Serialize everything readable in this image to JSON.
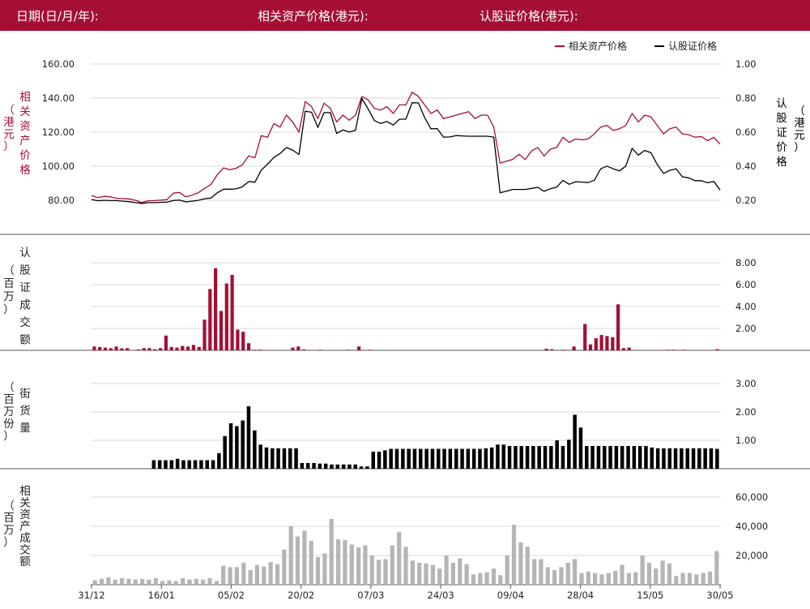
{
  "header": {
    "date_label": "日期(日/月/年):",
    "asset_label": "相关资产价格(港元):",
    "warrant_label": "认股证价格(港元):"
  },
  "colors": {
    "header_bg": "#a50f34",
    "asset": "#a50f34",
    "warrant": "#000000",
    "volume": "#b5b5b5",
    "grid": "#d9d9d9"
  },
  "chart_data": [
    {
      "type": "line",
      "legend": [
        "相关资产价格",
        "认股证价格"
      ],
      "legend_position": "top-right",
      "ylabel_left": "相关资产价格",
      "ylabel_left_unit": "（港元）",
      "ylabel_right": "认股证价格",
      "ylabel_right_unit": "（港元）",
      "y_left_ticks": [
        "80.00",
        "100.00",
        "120.00",
        "140.00",
        "160.00"
      ],
      "y_left_range": [
        70,
        164
      ],
      "y_right_ticks": [
        "0.20",
        "0.40",
        "0.60",
        "0.80",
        "1.00"
      ],
      "y_right_range": [
        0.1,
        1.04
      ],
      "series": [
        {
          "name": "相关资产价格",
          "axis": "left",
          "values": [
            82.7,
            81.5,
            82.3,
            82.0,
            81.2,
            81.0,
            80.8,
            80.0,
            78.7,
            79.7,
            79.8,
            80.1,
            80.4,
            84.2,
            84.6,
            82.0,
            83.0,
            84.5,
            87.0,
            89.3,
            95.0,
            99.0,
            98.0,
            98.8,
            100.8,
            106.0,
            105.0,
            118.0,
            117.0,
            125.0,
            123.0,
            130.0,
            126.0,
            120.0,
            138.0,
            135.0,
            128.0,
            137.0,
            134.0,
            126.0,
            130.0,
            127.0,
            130.0,
            141.0,
            139.0,
            134.0,
            133.0,
            135.0,
            131.0,
            136.0,
            136.0,
            143.5,
            141.0,
            136.0,
            131.0,
            133.0,
            128.0,
            129.0,
            130.0,
            131.0,
            132.0,
            128.0,
            130.0,
            130.0,
            123.0,
            101.8,
            103.0,
            104.0,
            107.0,
            104.0,
            109.0,
            111.0,
            106.0,
            110.0,
            111.0,
            117.0,
            114.0,
            116.0,
            115.5,
            116.0,
            119.0,
            123.0,
            124.0,
            121.0,
            122.0,
            124.0,
            131.0,
            126.0,
            130.0,
            129.0,
            124.0,
            119.0,
            122.0,
            123.0,
            119.0,
            118.5,
            117.0,
            117.5,
            115.0,
            117.0,
            113.0
          ]
        },
        {
          "name": "认股证价格",
          "axis": "right",
          "values": [
            0.205,
            0.197,
            0.2,
            0.198,
            0.198,
            0.195,
            0.192,
            0.186,
            0.182,
            0.186,
            0.186,
            0.188,
            0.189,
            0.199,
            0.201,
            0.191,
            0.195,
            0.2,
            0.209,
            0.213,
            0.244,
            0.265,
            0.265,
            0.267,
            0.279,
            0.31,
            0.306,
            0.377,
            0.412,
            0.451,
            0.475,
            0.51,
            0.495,
            0.469,
            0.723,
            0.717,
            0.628,
            0.715,
            0.715,
            0.593,
            0.613,
            0.601,
            0.611,
            0.798,
            0.737,
            0.668,
            0.651,
            0.663,
            0.642,
            0.676,
            0.676,
            0.773,
            0.772,
            0.685,
            0.62,
            0.621,
            0.571,
            0.572,
            0.58,
            0.578,
            0.576,
            0.576,
            0.576,
            0.576,
            0.571,
            0.244,
            0.254,
            0.264,
            0.264,
            0.264,
            0.27,
            0.276,
            0.253,
            0.268,
            0.277,
            0.317,
            0.294,
            0.309,
            0.307,
            0.304,
            0.318,
            0.385,
            0.401,
            0.385,
            0.373,
            0.401,
            0.505,
            0.465,
            0.493,
            0.48,
            0.41,
            0.358,
            0.376,
            0.385,
            0.338,
            0.332,
            0.315,
            0.315,
            0.303,
            0.311,
            0.261
          ]
        }
      ]
    },
    {
      "type": "bar",
      "ylabel": "认股证成交额",
      "ylabel_unit": "（百万）",
      "y_ticks": [
        "2.00",
        "4.00",
        "6.00",
        "8.00"
      ],
      "y_range": [
        0,
        9.0
      ],
      "series": [
        {
          "name": "认股证成交额",
          "values": [
            0.35,
            0.3,
            0.25,
            0.2,
            0.35,
            0.18,
            0.2,
            0,
            0.08,
            0.2,
            0.2,
            0.1,
            0.2,
            1.35,
            0.3,
            0.25,
            0.4,
            0.35,
            0.5,
            0.3,
            2.8,
            5.6,
            7.5,
            3.6,
            6.1,
            6.9,
            1.9,
            1.7,
            0.65,
            0.05,
            0.06,
            0,
            0,
            0,
            0,
            0,
            0.25,
            0.35,
            0.08,
            0,
            0,
            0.05,
            0,
            0,
            0,
            0,
            0.05,
            0,
            0.35,
            0,
            0.05,
            0,
            0,
            0,
            0,
            0,
            0,
            0,
            0,
            0,
            0,
            0,
            0,
            0,
            0,
            0,
            0,
            0,
            0,
            0,
            0,
            0,
            0,
            0,
            0,
            0,
            0,
            0,
            0,
            0,
            0,
            0,
            0.15,
            0.1,
            0,
            0.05,
            0,
            0.35,
            0,
            2.4,
            0.55,
            1.1,
            1.4,
            1.3,
            1.2,
            4.2,
            0.2,
            0.25,
            0,
            0,
            0,
            0,
            0,
            0,
            0.05,
            0.05,
            0,
            0.05,
            0,
            0,
            0,
            0,
            0,
            0.1
          ]
        }
      ]
    },
    {
      "type": "bar",
      "ylabel": "街货量",
      "ylabel_unit": "（百万份）",
      "y_ticks": [
        "1.00",
        "2.00",
        "3.00"
      ],
      "y_range": [
        0,
        3.2
      ],
      "series": [
        {
          "name": "街货量",
          "values": [
            0,
            0,
            0,
            0,
            0,
            0,
            0,
            0,
            0,
            0,
            0.3,
            0.3,
            0.3,
            0.3,
            0.35,
            0.3,
            0.3,
            0.3,
            0.3,
            0.3,
            0.3,
            0.55,
            1.15,
            1.6,
            1.5,
            1.7,
            2.2,
            1.35,
            0.85,
            0.75,
            0.72,
            0.72,
            0.72,
            0.72,
            0.72,
            0.2,
            0.2,
            0.2,
            0.18,
            0.18,
            0.15,
            0.15,
            0.15,
            0.15,
            0.15,
            0.08,
            0.08,
            0.6,
            0.6,
            0.65,
            0.7,
            0.7,
            0.7,
            0.7,
            0.7,
            0.7,
            0.7,
            0.7,
            0.7,
            0.7,
            0.7,
            0.7,
            0.7,
            0.7,
            0.7,
            0.7,
            0.72,
            0.75,
            0.85,
            0.85,
            0.8,
            0.8,
            0.8,
            0.8,
            0.8,
            0.8,
            0.8,
            0.8,
            1.0,
            0.8,
            1.02,
            1.9,
            1.45,
            0.8,
            0.8,
            0.8,
            0.8,
            0.8,
            0.8,
            0.8,
            0.8,
            0.8,
            0.8,
            0.8,
            0.75,
            0.72,
            0.72,
            0.72,
            0.72,
            0.72,
            0.72,
            0.72,
            0.72,
            0.72,
            0.72,
            0.7
          ]
        }
      ]
    },
    {
      "type": "bar",
      "ylabel": "相关资产成交额",
      "ylabel_unit": "（百万）",
      "y_ticks": [
        "20,000",
        "40,000",
        "60,000"
      ],
      "y_range": [
        0,
        64000
      ],
      "x_ticks": [
        "31/12",
        "16/01",
        "05/02",
        "20/02",
        "07/03",
        "24/03",
        "09/04",
        "28/04",
        "15/05",
        "30/05"
      ],
      "series": [
        {
          "name": "相关资产成交额",
          "values": [
            3000,
            4000,
            5000,
            3500,
            4500,
            4000,
            3500,
            4000,
            3500,
            4500,
            2500,
            3000,
            2500,
            4500,
            3500,
            4000,
            3500,
            4500,
            2500,
            13000,
            12000,
            12000,
            15000,
            10000,
            13500,
            12500,
            15500,
            14000,
            24000,
            40000,
            33000,
            37000,
            30000,
            19000,
            21500,
            45000,
            31000,
            30500,
            27500,
            25500,
            27000,
            20000,
            17000,
            17500,
            27000,
            36000,
            26000,
            16500,
            15000,
            14500,
            13500,
            11000,
            20000,
            15000,
            18000,
            14000,
            7000,
            8000,
            8500,
            11000,
            6500,
            20000,
            41000,
            29000,
            26000,
            17500,
            17500,
            12000,
            10000,
            12000,
            15000,
            17500,
            8000,
            9000,
            8000,
            7000,
            8000,
            9500,
            13500,
            8000,
            8500,
            20000,
            15000,
            11000,
            16500,
            14500,
            6000,
            8000,
            8000,
            7000,
            8000,
            9000,
            23000
          ]
        }
      ]
    }
  ]
}
